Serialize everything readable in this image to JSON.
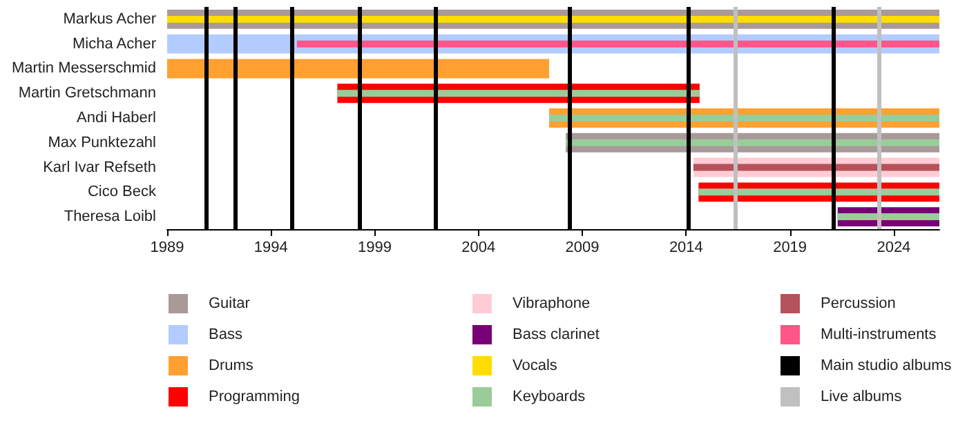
{
  "chart_data": {
    "type": "bar",
    "orientation": "horizontal",
    "categories": [
      "Markus Acher",
      "Micha Acher",
      "Martin Messerschmid",
      "Martin Gretschmann",
      "Andi Haberl",
      "Max Punktezahl",
      "Karl Ivar Refseth",
      "Cico Beck",
      "Theresa Loibl"
    ],
    "series": [
      {
        "name": "Guitar",
        "color": "#aa9999",
        "base": [
          1989,
          null,
          null,
          null,
          null,
          2008.2,
          null,
          null,
          null
        ],
        "values": [
          37.2,
          null,
          null,
          null,
          null,
          18.0,
          null,
          null,
          null
        ]
      },
      {
        "name": "Bass",
        "color": "#b3ccff",
        "base": [
          null,
          1989,
          null,
          null,
          null,
          null,
          null,
          null,
          null
        ],
        "values": [
          null,
          37.2,
          null,
          null,
          null,
          null,
          null,
          null,
          null
        ]
      },
      {
        "name": "Drums",
        "color": "#ffa030",
        "base": [
          null,
          null,
          1989,
          null,
          2007.4,
          null,
          null,
          null,
          null
        ],
        "values": [
          null,
          null,
          18.4,
          null,
          18.8,
          null,
          null,
          null,
          null
        ]
      },
      {
        "name": "Programming",
        "color": "#ff0000",
        "base": [
          null,
          null,
          null,
          1997.2,
          null,
          null,
          null,
          2014.6,
          null
        ],
        "values": [
          null,
          null,
          null,
          17.45,
          null,
          null,
          null,
          11.6,
          null
        ]
      },
      {
        "name": "Vibraphone",
        "color": "#ffccd5",
        "base": [
          null,
          null,
          null,
          null,
          null,
          null,
          2014.35,
          null,
          null
        ],
        "values": [
          null,
          null,
          null,
          null,
          null,
          null,
          11.85,
          null,
          null
        ]
      },
      {
        "name": "Bass clarinet",
        "color": "#770077",
        "base": [
          null,
          null,
          null,
          null,
          null,
          null,
          null,
          null,
          2021.3
        ],
        "values": [
          null,
          null,
          null,
          null,
          null,
          null,
          null,
          null,
          4.9
        ]
      },
      {
        "name": "Vocals",
        "color": "#ffdd00",
        "base": [
          1989,
          null,
          null,
          null,
          null,
          null,
          null,
          null,
          null
        ],
        "values": [
          37.2,
          null,
          null,
          null,
          null,
          null,
          null,
          null,
          null
        ]
      },
      {
        "name": "Keyboards",
        "color": "#99cc99",
        "base": [
          null,
          null,
          null,
          1997.2,
          2007.4,
          2008.2,
          null,
          2014.6,
          2021.3
        ],
        "values": [
          null,
          null,
          null,
          17.45,
          18.8,
          18.0,
          null,
          11.6,
          4.9
        ]
      },
      {
        "name": "Percussion",
        "color": "#b5525a",
        "base": [
          null,
          null,
          null,
          null,
          null,
          null,
          2014.35,
          null,
          null
        ],
        "values": [
          null,
          null,
          null,
          null,
          null,
          null,
          11.85,
          null,
          null
        ]
      },
      {
        "name": "Multi-instruments",
        "color": "#ff5588",
        "base": [
          null,
          1995.25,
          null,
          null,
          null,
          null,
          null,
          null,
          null
        ],
        "values": [
          null,
          30.95,
          null,
          null,
          null,
          null,
          null,
          null,
          null
        ]
      }
    ],
    "ref_lines": [
      {
        "axis": "x",
        "value": 1990.9,
        "label": "Main studio albums",
        "color": "#000000"
      },
      {
        "axis": "x",
        "value": 1992.3,
        "color": "#000000"
      },
      {
        "axis": "x",
        "value": 1995.0,
        "color": "#000000"
      },
      {
        "axis": "x",
        "value": 1998.3,
        "color": "#000000"
      },
      {
        "axis": "x",
        "value": 2001.95,
        "color": "#000000"
      },
      {
        "axis": "x",
        "value": 2008.4,
        "color": "#000000"
      },
      {
        "axis": "x",
        "value": 2014.1,
        "color": "#000000"
      },
      {
        "axis": "x",
        "value": 2021.1,
        "color": "#000000"
      },
      {
        "axis": "x",
        "value": 2016.4,
        "label": "Live albums",
        "color": "#c0c0c0"
      },
      {
        "axis": "x",
        "value": 2023.3,
        "color": "#c0c0c0"
      }
    ],
    "xlim": [
      1989,
      2026.2
    ],
    "xticks": [
      1989,
      1994,
      1999,
      2004,
      2009,
      2014,
      2019,
      2024
    ],
    "grid": false,
    "legend": "bottom"
  }
}
